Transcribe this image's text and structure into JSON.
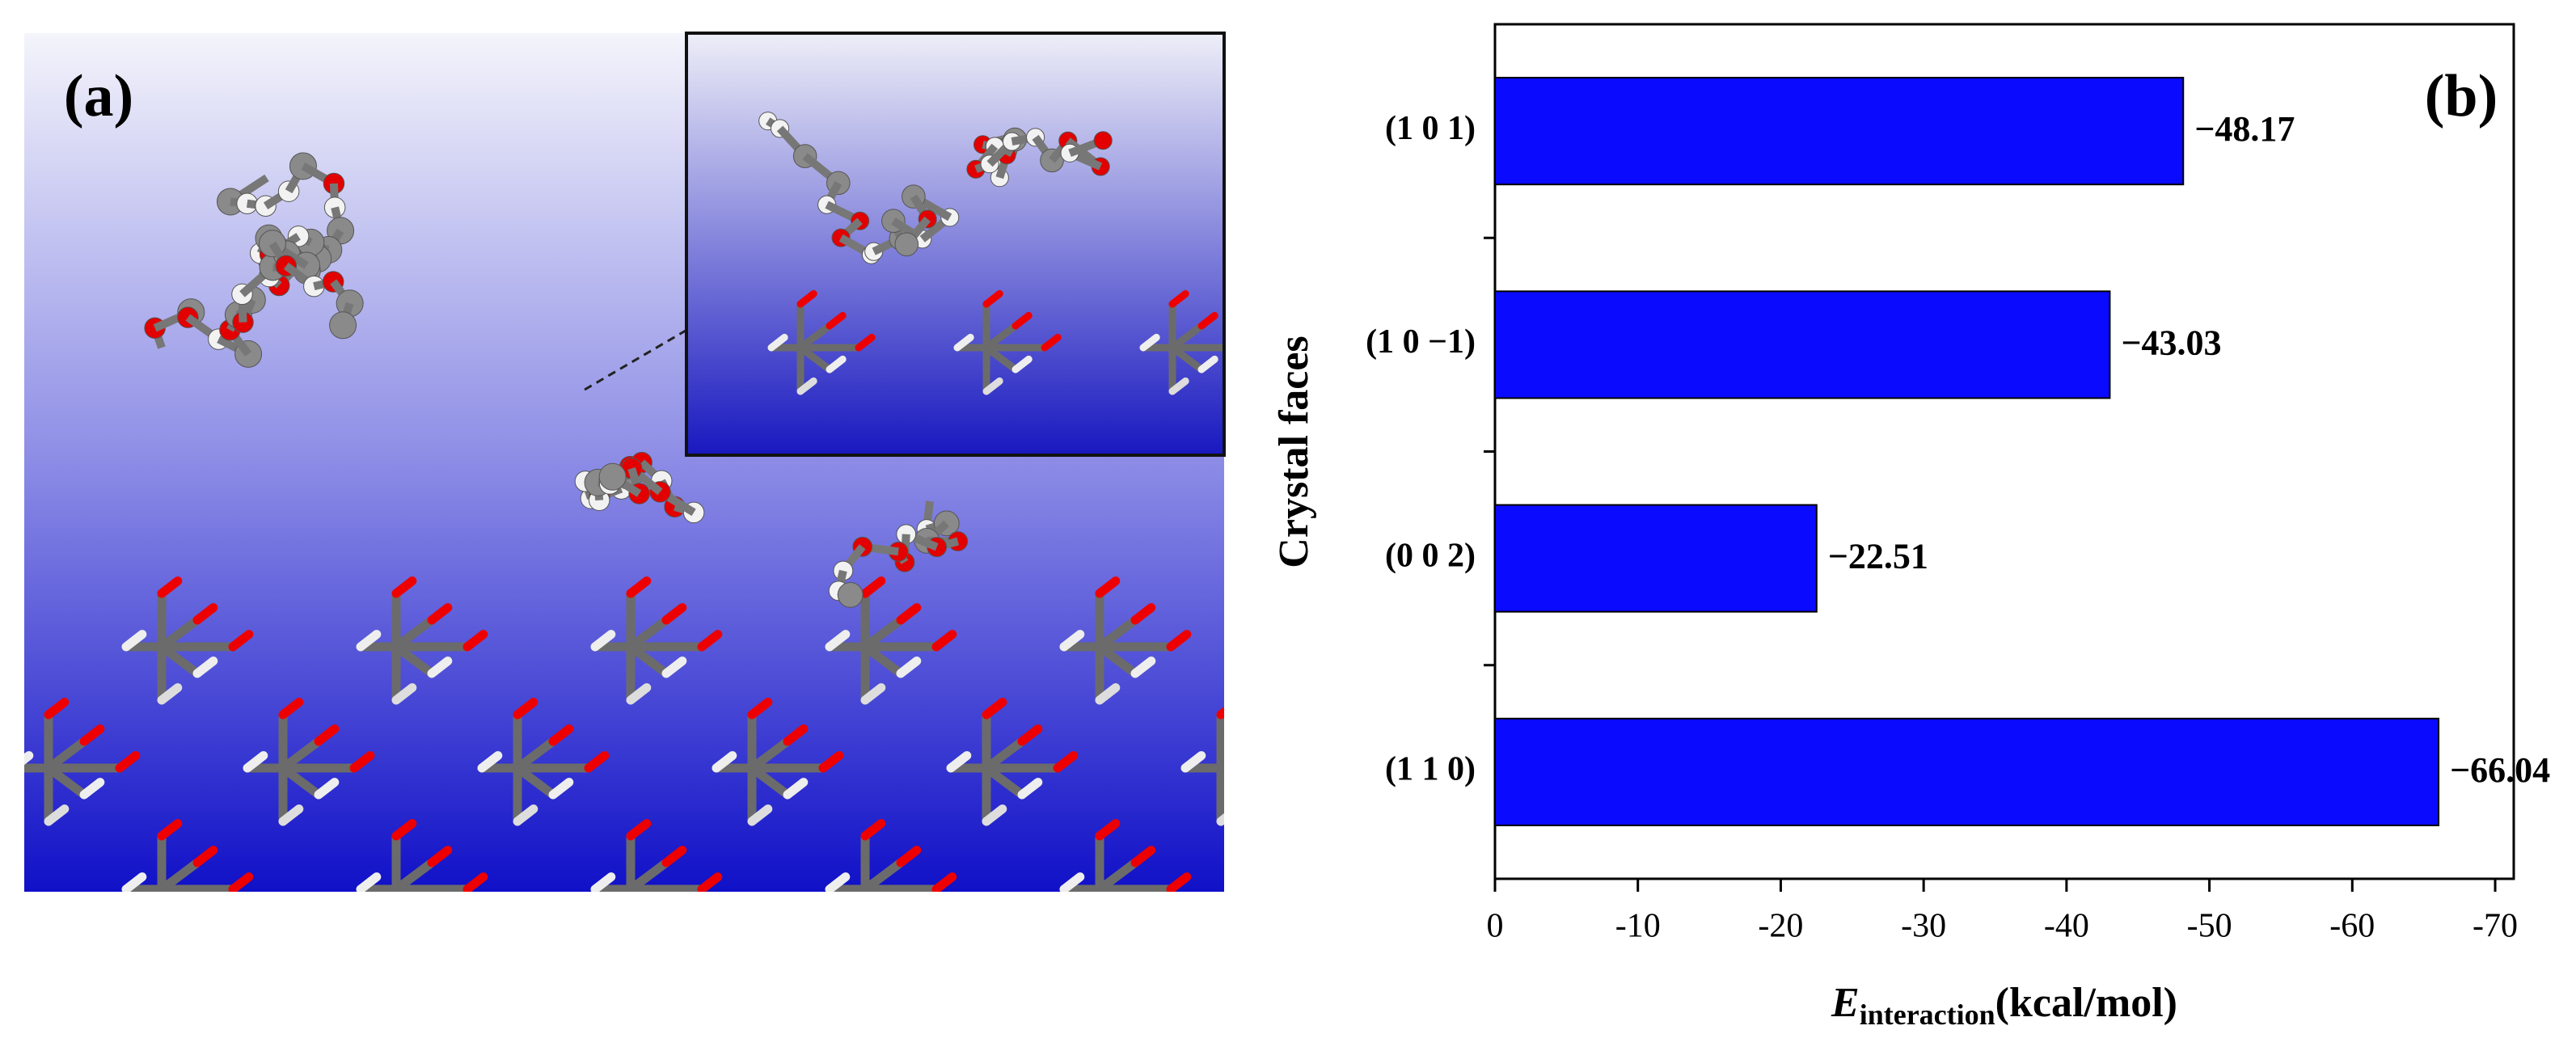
{
  "panel_a": {
    "label": "(a)"
  },
  "chart_data": {
    "type": "bar",
    "orientation": "horizontal",
    "panel_label": "(b)",
    "categories": [
      "(1 0 1)",
      "(1 0 −1)",
      "(0 0 2)",
      "(1 1 0)"
    ],
    "values": [
      -48.17,
      -43.03,
      -22.51,
      -66.04
    ],
    "value_labels": [
      "−48.17",
      "−43.03",
      "−22.51",
      "−66.04"
    ],
    "color": "#0a0aff",
    "xlim": [
      0,
      -71.3
    ],
    "xticks": [
      0,
      -10,
      -20,
      -30,
      -40,
      -50,
      -60,
      -70
    ],
    "xlabel": {
      "symbol": "E",
      "subscript": "interaction",
      "unit": "(kcal/mol)"
    },
    "ylabel": "Crystal faces",
    "grid": false
  }
}
